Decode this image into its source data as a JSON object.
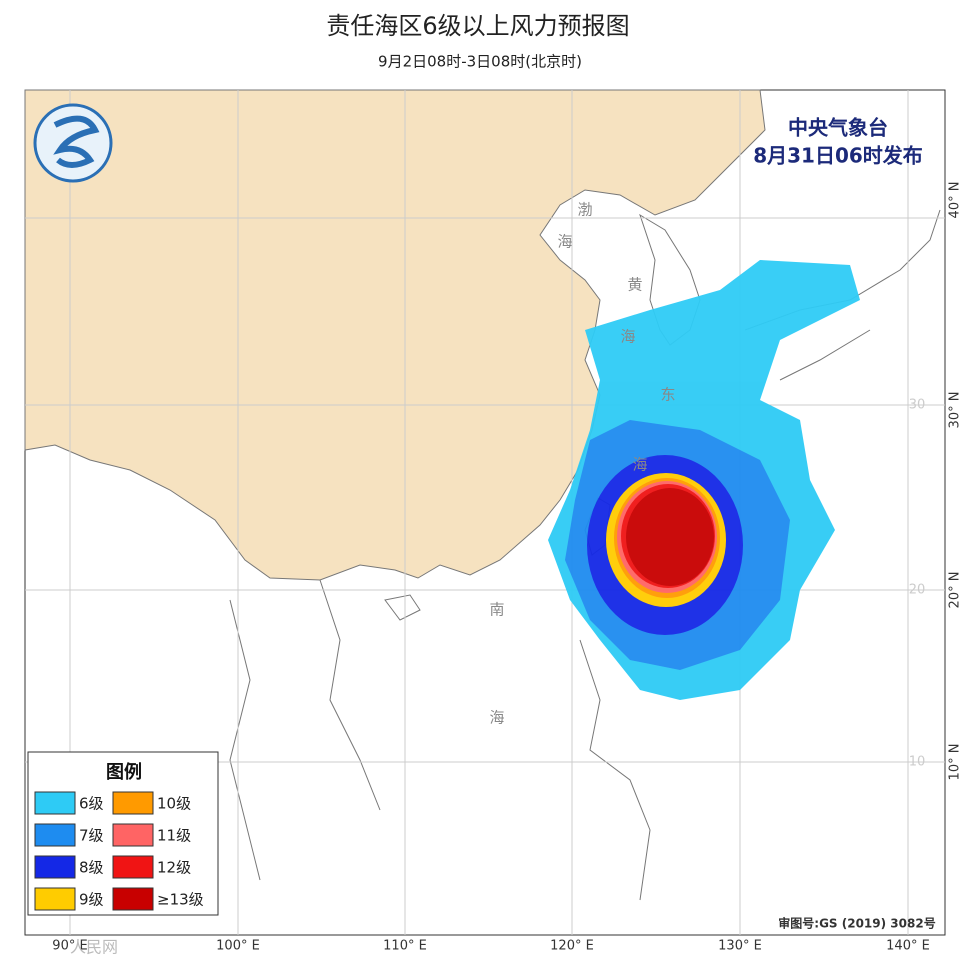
{
  "header": {
    "title": "责任海区6级以上风力预报图",
    "subtitle": "9月2日08时-3日08时(北京时)"
  },
  "issuer": {
    "name": "中央气象台",
    "time": "8月31日06时发布"
  },
  "sea_labels": [
    [
      "渤",
      "海"
    ],
    [
      "黄",
      "海"
    ],
    [
      "东",
      "海"
    ],
    [
      "南",
      "海"
    ]
  ],
  "grid_labels": {
    "longitude": [
      "90° E",
      "100° E",
      "110° E",
      "120° E",
      "130° E",
      "140° E"
    ],
    "latitude": [
      "40° N",
      "30° N",
      "20° N",
      "10° N"
    ],
    "inner": [
      "30",
      "20",
      "10"
    ]
  },
  "legend": {
    "title": "图例",
    "items": [
      {
        "label": "6级",
        "color": "#2ecbf5"
      },
      {
        "label": "10级",
        "color": "#ff9a00"
      },
      {
        "label": "7级",
        "color": "#1e8cf0"
      },
      {
        "label": "11级",
        "color": "#ff6464"
      },
      {
        "label": "8级",
        "color": "#1428e6"
      },
      {
        "label": "12级",
        "color": "#f01414"
      },
      {
        "label": "9级",
        "color": "#ffcc00"
      },
      {
        "label": "≥13级",
        "color": "#c80000"
      }
    ]
  },
  "footer": {
    "approval": "审图号:GS (2019) 3082号",
    "watermark": "人民网"
  }
}
